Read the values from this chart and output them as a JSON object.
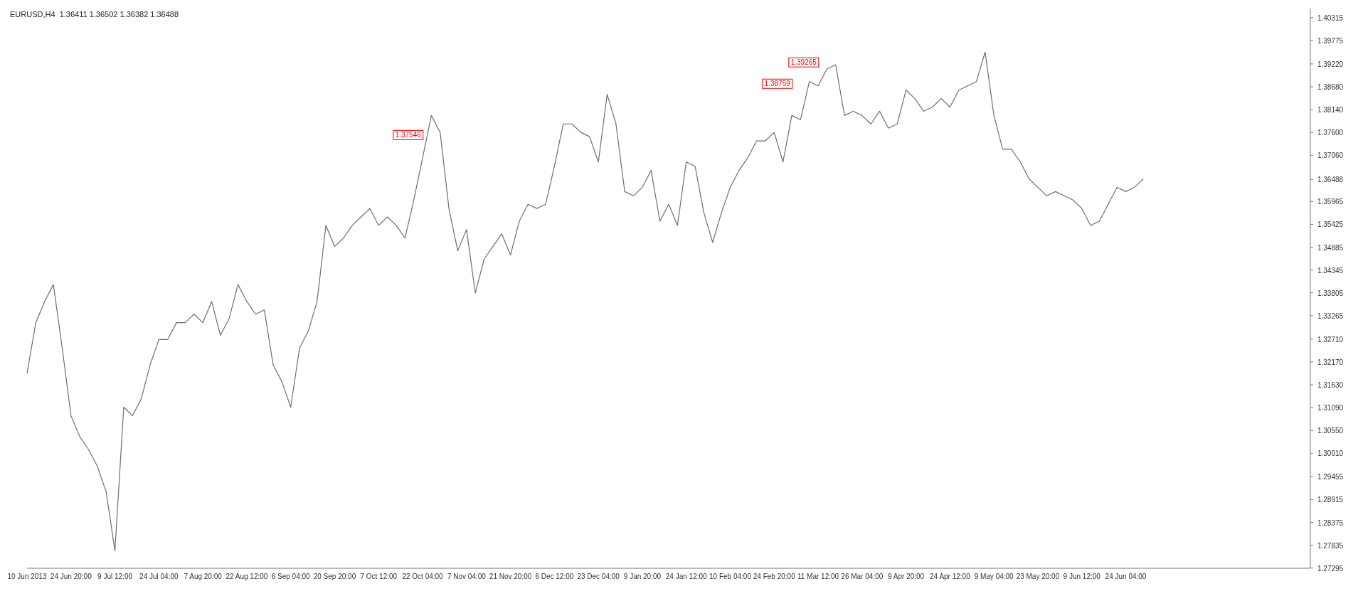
{
  "chart_data": {
    "type": "line",
    "title": "EURUSD,H4  1.36411 1.36502 1.36382 1.36488",
    "categories": [
      "10 Jun 2013",
      null,
      null,
      null,
      null,
      "24 Jun 20:00",
      null,
      null,
      null,
      null,
      "9 Jul 12:00",
      null,
      null,
      null,
      null,
      "24 Jul 04:00",
      null,
      null,
      null,
      null,
      "7 Aug 20:00",
      null,
      null,
      null,
      null,
      "22 Aug 12:00",
      null,
      null,
      null,
      null,
      "6 Sep 04:00",
      null,
      null,
      null,
      null,
      "20 Sep 20:00",
      null,
      null,
      null,
      null,
      "7 Oct 12:00",
      null,
      null,
      null,
      null,
      "22 Oct 04:00",
      null,
      null,
      null,
      null,
      "7 Nov 04:00",
      null,
      null,
      null,
      null,
      "21 Nov 20:00",
      null,
      null,
      null,
      null,
      "6 Dec 12:00",
      null,
      null,
      null,
      null,
      "23 Dec 04:00",
      null,
      null,
      null,
      null,
      "9 Jan 20:00",
      null,
      null,
      null,
      null,
      "24 Jan 12:00",
      null,
      null,
      null,
      null,
      "10 Feb 04:00",
      null,
      null,
      null,
      null,
      "24 Feb 20:00",
      null,
      null,
      null,
      null,
      "11 Mar 12:00",
      null,
      null,
      null,
      null,
      "26 Mar 04:00",
      null,
      null,
      null,
      null,
      "9 Apr 20:00",
      null,
      null,
      null,
      null,
      "24 Apr 12:00",
      null,
      null,
      null,
      null,
      "9 May 04:00",
      null,
      null,
      null,
      null,
      "23 May 20:00",
      null,
      null,
      null,
      null,
      "9 Jun 12:00",
      null,
      null,
      null,
      null,
      "24 Jun 04:00",
      null,
      null,
      null,
      null,
      null,
      null,
      null,
      null,
      null,
      null,
      null,
      null,
      null,
      null,
      null,
      null,
      null,
      null,
      null,
      null,
      null
    ],
    "series": [
      {
        "color": "#6e6e6e",
        "values": [
          1.319,
          1.331,
          1.336,
          1.34,
          1.325,
          1.309,
          1.304,
          1.301,
          1.297,
          1.291,
          1.277,
          1.311,
          1.309,
          1.313,
          1.321,
          1.327,
          1.327,
          1.331,
          1.331,
          1.333,
          1.331,
          1.336,
          1.328,
          1.332,
          1.34,
          1.336,
          1.333,
          1.334,
          1.321,
          1.317,
          1.311,
          1.325,
          1.329,
          1.336,
          1.354,
          1.349,
          1.351,
          1.354,
          1.356,
          1.358,
          1.354,
          1.356,
          1.354,
          1.351,
          1.36,
          1.37,
          1.38,
          1.376,
          1.358,
          1.348,
          1.353,
          1.338,
          1.346,
          1.349,
          1.352,
          1.347,
          1.355,
          1.359,
          1.358,
          1.359,
          1.368,
          1.378,
          1.378,
          1.376,
          1.375,
          1.369,
          1.385,
          1.378,
          1.362,
          1.361,
          1.363,
          1.367,
          1.355,
          1.359,
          1.354,
          1.369,
          1.368,
          1.357,
          1.35,
          1.357,
          1.363,
          1.367,
          1.37,
          1.374,
          1.374,
          1.376,
          1.369,
          1.38,
          1.379,
          1.388,
          1.387,
          1.391,
          1.392,
          1.38,
          1.381,
          1.38,
          1.378,
          1.381,
          1.377,
          1.378,
          1.386,
          1.384,
          1.381,
          1.382,
          1.384,
          1.382,
          1.386,
          1.387,
          1.388,
          1.395,
          1.38,
          1.372,
          1.372,
          1.369,
          1.365,
          1.363,
          1.361,
          1.362,
          1.361,
          1.36,
          1.358,
          1.354,
          1.355,
          1.359,
          1.363,
          1.362,
          1.363,
          1.365,
          null,
          null,
          null,
          null,
          null,
          null,
          null,
          null,
          null,
          null,
          null,
          null,
          null,
          null,
          null,
          null,
          null,
          null,
          null
        ]
      }
    ],
    "ylim": [
      1.2729,
      1.4053
    ],
    "yticks": [
      1.40315,
      1.39775,
      {
        "value": 1.3922,
        "label": "1.39220"
      },
      {
        "value": 1.3868,
        "label": "1.38680"
      },
      {
        "value": 1.3814,
        "label": "1.38140"
      },
      {
        "value": 1.376,
        "label": "1.37600"
      },
      {
        "value": 1.3706,
        "label": "1.37060"
      },
      1.36488,
      1.35965,
      1.35425,
      1.34885,
      1.34345,
      1.33805,
      1.33265,
      {
        "value": 1.3271,
        "label": "1.32710"
      },
      {
        "value": 1.3217,
        "label": "1.32170"
      },
      {
        "value": 1.3163,
        "label": "1.31630"
      },
      {
        "value": 1.3109,
        "label": "1.31090"
      },
      {
        "value": 1.3055,
        "label": "1.30550"
      },
      {
        "value": 1.3001,
        "label": "1.30010"
      },
      1.29455,
      1.28915,
      1.28375,
      1.27835,
      1.27295
    ],
    "annotations": [
      "1.37546",
      "1.39265",
      "1.38759"
    ],
    "grid": false,
    "legend": false,
    "marker": "none",
    "line_style": "solid"
  }
}
